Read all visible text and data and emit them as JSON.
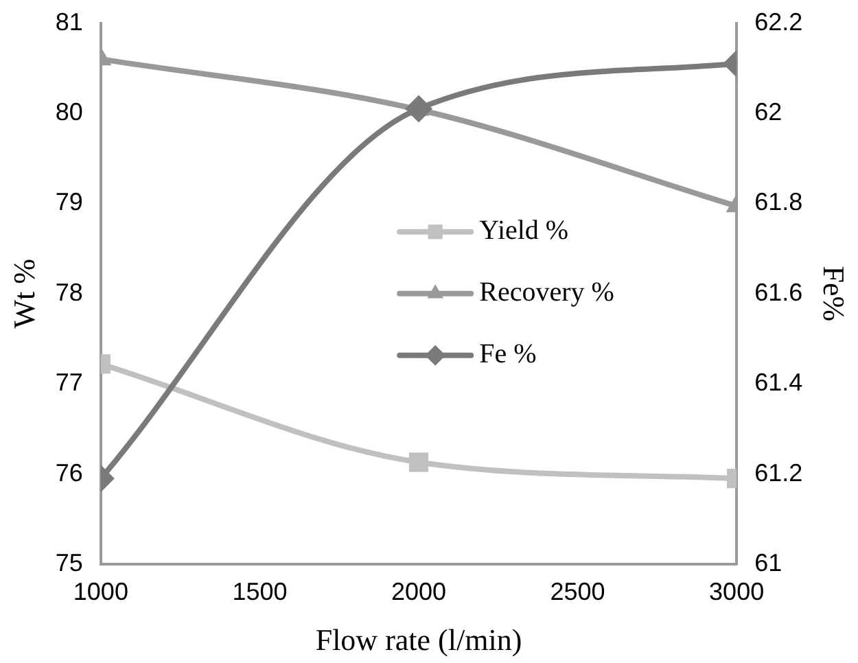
{
  "chart_data": {
    "type": "line",
    "xlabel": "Flow rate (l/min)",
    "ylabel": "Wt %",
    "y2label": "Fe%",
    "x": [
      1000,
      2000,
      3000
    ],
    "series": [
      {
        "name": "Yield %",
        "color": "#c0c0c0",
        "marker": "square",
        "values": [
          77.22,
          76.13,
          75.95
        ]
      },
      {
        "name": "Recovery %",
        "color": "#999999",
        "marker": "triangle",
        "values": [
          80.6,
          80.04,
          78.97
        ]
      },
      {
        "name": "Fe %",
        "color": "#7a7a7a",
        "marker": "diamond",
        "axis": "y2",
        "values": [
          61.19,
          62.01,
          62.11
        ]
      }
    ],
    "xlim": [
      1000,
      3000
    ],
    "xticks": [
      1000,
      1500,
      2000,
      2500,
      3000
    ],
    "ylim": [
      75,
      81
    ],
    "yticks": [
      75,
      76,
      77,
      78,
      79,
      80,
      81
    ],
    "y2lim": [
      61,
      62.2
    ],
    "y2ticks": [
      61,
      61.2,
      61.4,
      61.6,
      61.8,
      62,
      62.2
    ],
    "grid": false,
    "legend": "center",
    "line_style": "solid"
  }
}
